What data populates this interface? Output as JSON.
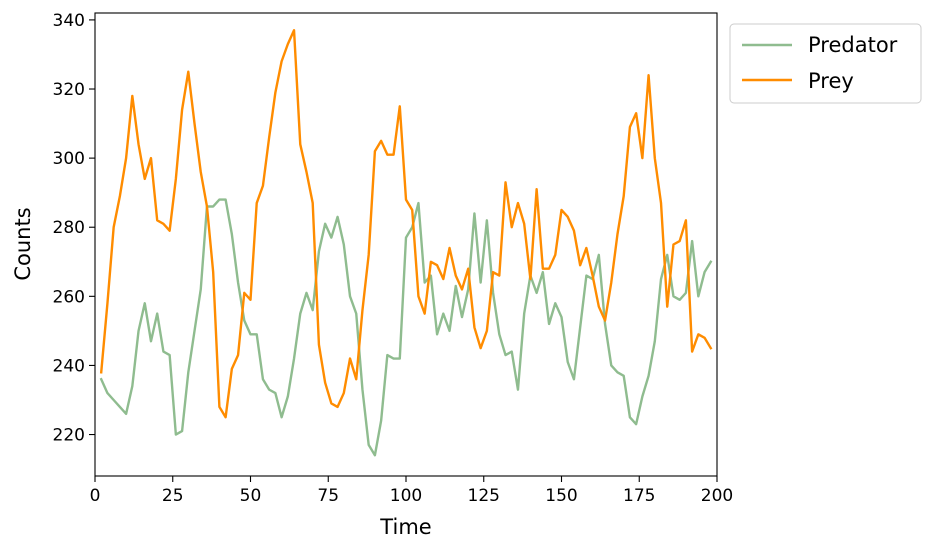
{
  "chart_data": {
    "type": "line",
    "xlabel": "Time",
    "ylabel": "Counts",
    "xlim": [
      0,
      200
    ],
    "ylim": [
      208,
      342
    ],
    "xticks": [
      0,
      25,
      50,
      75,
      100,
      125,
      150,
      175,
      200
    ],
    "yticks": [
      220,
      240,
      260,
      280,
      300,
      320,
      340
    ],
    "grid": false,
    "legend_position": "outside-top-right",
    "series": [
      {
        "name": "Predator",
        "color": "#8fbc8f",
        "x": [
          2,
          4,
          6,
          8,
          10,
          12,
          14,
          16,
          18,
          20,
          22,
          24,
          26,
          28,
          30,
          32,
          34,
          36,
          38,
          40,
          42,
          44,
          46,
          48,
          50,
          52,
          54,
          56,
          58,
          60,
          62,
          64,
          66,
          68,
          70,
          72,
          74,
          76,
          78,
          80,
          82,
          84,
          86,
          88,
          90,
          92,
          94,
          96,
          98,
          100,
          102,
          104,
          106,
          108,
          110,
          112,
          114,
          116,
          118,
          120,
          122,
          124,
          126,
          128,
          130,
          132,
          134,
          136,
          138,
          140,
          142,
          144,
          146,
          148,
          150,
          152,
          154,
          156,
          158,
          160,
          162,
          164,
          166,
          168,
          170,
          172,
          174,
          176,
          178,
          180,
          182,
          184,
          186,
          188,
          190,
          192,
          194,
          196,
          198
        ],
        "values": [
          236,
          232,
          230,
          228,
          226,
          234,
          250,
          258,
          247,
          255,
          244,
          243,
          220,
          221,
          238,
          250,
          262,
          286,
          286,
          288,
          288,
          278,
          264,
          253,
          249,
          249,
          236,
          233,
          232,
          225,
          231,
          242,
          255,
          261,
          256,
          273,
          281,
          277,
          283,
          275,
          260,
          255,
          233,
          217,
          214,
          224,
          243,
          242,
          242,
          277,
          280,
          287,
          264,
          266,
          249,
          255,
          250,
          263,
          254,
          262,
          284,
          264,
          282,
          261,
          249,
          243,
          244,
          233,
          255,
          266,
          261,
          267,
          252,
          258,
          254,
          241,
          236,
          251,
          266,
          265,
          272,
          252,
          240,
          238,
          237,
          225,
          223,
          231,
          237,
          247,
          265,
          272,
          260,
          259,
          261,
          276,
          260,
          267,
          270
        ]
      },
      {
        "name": "Prey",
        "color": "#ff8c00",
        "x": [
          2,
          4,
          6,
          8,
          10,
          12,
          14,
          16,
          18,
          20,
          22,
          24,
          26,
          28,
          30,
          32,
          34,
          36,
          38,
          40,
          42,
          44,
          46,
          48,
          50,
          52,
          54,
          56,
          58,
          60,
          62,
          64,
          66,
          68,
          70,
          72,
          74,
          76,
          78,
          80,
          82,
          84,
          86,
          88,
          90,
          92,
          94,
          96,
          98,
          100,
          102,
          104,
          106,
          108,
          110,
          112,
          114,
          116,
          118,
          120,
          122,
          124,
          126,
          128,
          130,
          132,
          134,
          136,
          138,
          140,
          142,
          144,
          146,
          148,
          150,
          152,
          154,
          156,
          158,
          160,
          162,
          164,
          166,
          168,
          170,
          172,
          174,
          176,
          178,
          180,
          182,
          184,
          186,
          188,
          190,
          192,
          194,
          196,
          198
        ],
        "values": [
          238,
          258,
          280,
          289,
          300,
          318,
          304,
          294,
          300,
          282,
          281,
          279,
          294,
          314,
          325,
          310,
          296,
          286,
          267,
          228,
          225,
          239,
          243,
          261,
          259,
          287,
          292,
          306,
          319,
          328,
          333,
          337,
          304,
          296,
          287,
          246,
          235,
          229,
          228,
          232,
          242,
          236,
          256,
          272,
          302,
          305,
          301,
          301,
          315,
          288,
          285,
          260,
          255,
          270,
          269,
          265,
          274,
          266,
          262,
          268,
          251,
          245,
          250,
          267,
          266,
          293,
          280,
          287,
          281,
          265,
          291,
          268,
          268,
          272,
          285,
          283,
          279,
          269,
          274,
          266,
          257,
          253,
          264,
          278,
          289,
          309,
          313,
          300,
          324,
          300,
          287,
          257,
          275,
          276,
          282,
          244,
          249,
          248,
          245
        ]
      }
    ]
  }
}
